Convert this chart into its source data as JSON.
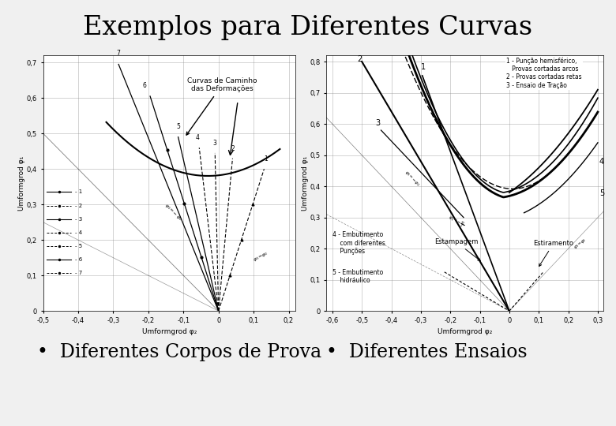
{
  "title": "Exemplos para Diferentes Curvas",
  "bg_color": "#f0f0f0",
  "title_fontsize": 24,
  "left_chart": {
    "xlabel": "Umformgrod φ₂",
    "ylabel": "Umformgrod φ₁",
    "xlim": [
      -0.5,
      0.22
    ],
    "ylim": [
      0.0,
      0.72
    ],
    "xticks": [
      -0.5,
      -0.4,
      -0.3,
      -0.2,
      -0.1,
      0.0,
      0.1,
      0.2
    ],
    "yticks": [
      0.0,
      0.1,
      0.2,
      0.3,
      0.4,
      0.5,
      0.6,
      0.7
    ],
    "xtick_labels": [
      "-0,5",
      "-0,4",
      "-0,3",
      "-0,2",
      "-0,1",
      "0",
      "0,1",
      "0,2"
    ],
    "ytick_labels": [
      "0",
      "0,1",
      "0,2",
      "0,3",
      "0,4",
      "0,5",
      "0,6",
      "0,7"
    ],
    "annotation": "Curvas de Caminho\ndas Deformações"
  },
  "right_chart": {
    "xlabel": "Umformgrod φ₂",
    "ylabel": "Umformgrod φ₁",
    "xlim": [
      -0.62,
      0.32
    ],
    "ylim": [
      0.0,
      0.82
    ],
    "xticks": [
      -0.6,
      -0.5,
      -0.4,
      -0.3,
      -0.2,
      -0.1,
      0.0,
      0.1,
      0.2,
      0.3
    ],
    "yticks": [
      0.0,
      0.1,
      0.2,
      0.3,
      0.4,
      0.5,
      0.6,
      0.7,
      0.8
    ],
    "xtick_labels": [
      "-0,6",
      "-0,5",
      "-0,4",
      "-0,3",
      "-0,2",
      "-0,1",
      "0",
      "0,1",
      "0,2",
      "0,3"
    ],
    "ytick_labels": [
      "0",
      "0,1",
      "0,2",
      "0,3",
      "0,4",
      "0,5",
      "0,6",
      "0,7",
      "0,8"
    ],
    "legend_text": "1 - Punção hemisférico,\n   Provas cortadas arcos\n2 - Provas cortadas retas\n3 - Ensaio de Tração",
    "note1": "4 - Embutimento\n    com diferentes\n    Punções",
    "note2": "5 - Embutimento\n    hidráulico",
    "note3": "Estampagem",
    "note4": "Estiramento"
  },
  "bullet1": "Diferentes Corpos de Prova",
  "bullet2": "Diferentes Ensaios",
  "bullet_fontsize": 17
}
